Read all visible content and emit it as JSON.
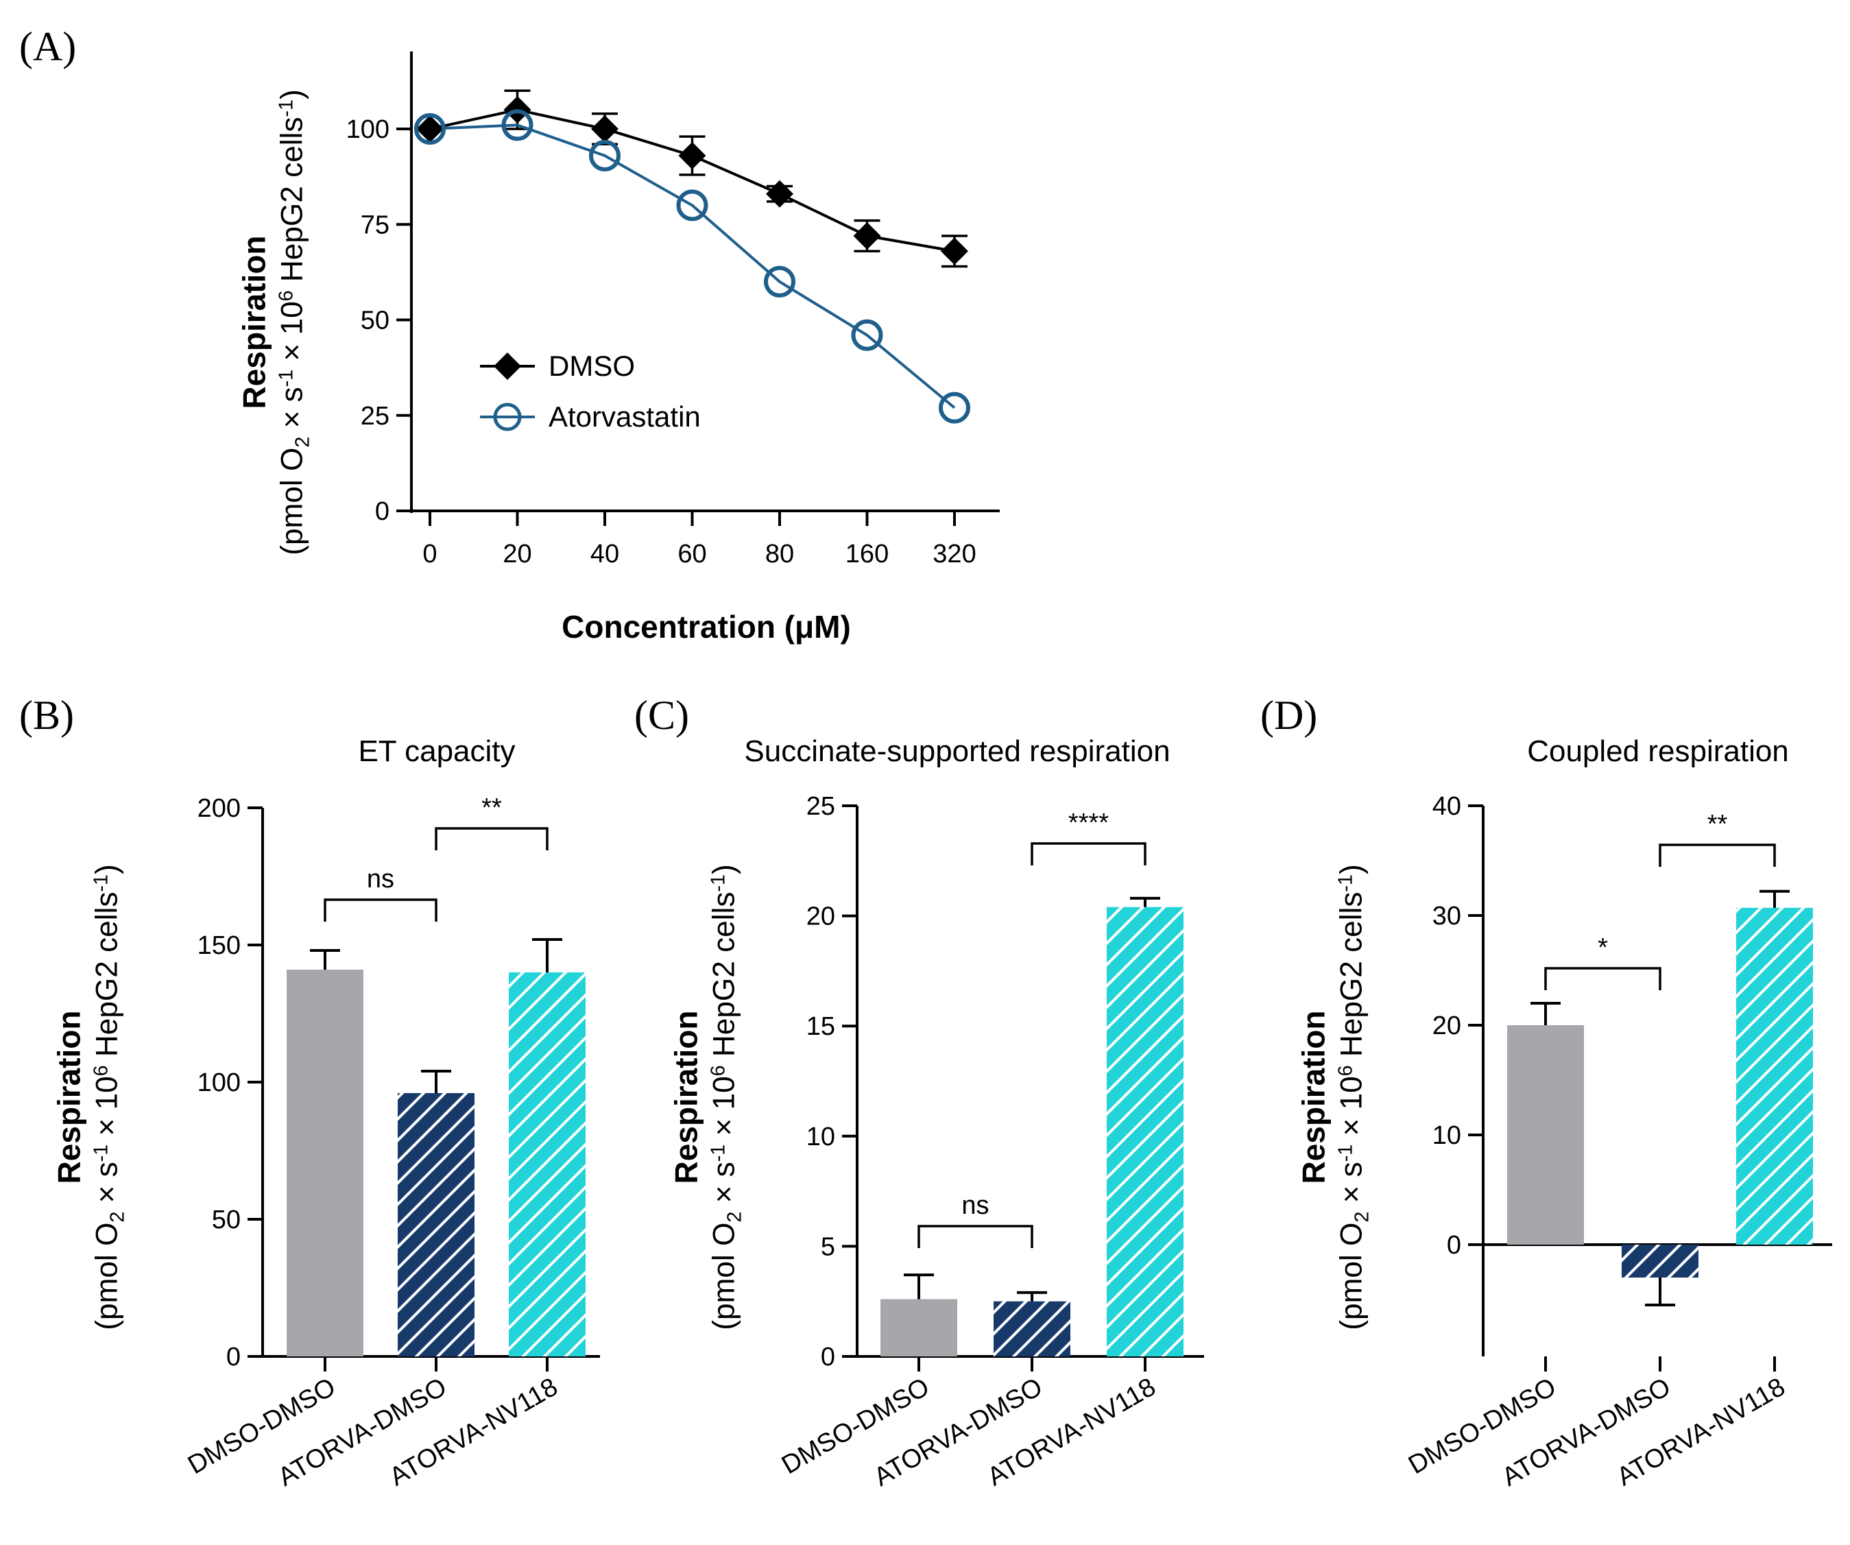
{
  "figure": {
    "panel_labels": [
      "(A)",
      "(B)",
      "(C)",
      "(D)"
    ],
    "y_label_bold": "Respiration",
    "y_label_units_prefix": "(pmol O",
    "y_label_units_sub": "2",
    "y_label_units_mid1": " × s",
    "y_label_units_sup1": "-1",
    "y_label_units_mid2": " × 10",
    "y_label_units_sup2": "6",
    "y_label_units_mid3": " HepG2 cells",
    "y_label_units_sup3": "-1",
    "y_label_units_suffix": ")"
  },
  "chart_data": [
    {
      "id": "A",
      "type": "line",
      "title": "",
      "xlabel": "Concentration (μM)",
      "ylabel": "Respiration (pmol O2 × s-1 × 10^6 HepG2 cells-1)",
      "categories": [
        "0",
        "20",
        "40",
        "60",
        "80",
        "160",
        "320"
      ],
      "ylim": [
        0,
        120
      ],
      "yticks": [
        0,
        25,
        50,
        75,
        100
      ],
      "grid": false,
      "legend_position": "lower-left",
      "series": [
        {
          "name": "DMSO",
          "marker": "diamond",
          "color": "#000000",
          "values": [
            100,
            105,
            100,
            93,
            83,
            72,
            68
          ],
          "errors": [
            0,
            5,
            4,
            5,
            2,
            4,
            4
          ]
        },
        {
          "name": "Atorvastatin",
          "marker": "circle-open",
          "color": "#1f5f8b",
          "values": [
            100,
            101,
            93,
            80,
            60,
            46,
            27
          ],
          "errors": [
            0,
            0,
            0,
            0,
            0,
            0,
            0
          ]
        }
      ]
    },
    {
      "id": "B",
      "type": "bar",
      "title": "ET capacity",
      "categories": [
        "DMSO-DMSO",
        "ATORVA-DMSO",
        "ATORVA-NV118"
      ],
      "values": [
        141,
        96,
        140
      ],
      "errors": [
        7,
        8,
        12
      ],
      "ylim": [
        0,
        200
      ],
      "yticks": [
        0,
        50,
        100,
        150,
        200
      ],
      "significance": [
        {
          "from": 0,
          "to": 1,
          "label": "ns"
        },
        {
          "from": 1,
          "to": 2,
          "label": "**"
        }
      ]
    },
    {
      "id": "C",
      "type": "bar",
      "title": "Succinate-supported respiration",
      "categories": [
        "DMSO-DMSO",
        "ATORVA-DMSO",
        "ATORVA-NV118"
      ],
      "values": [
        2.6,
        2.5,
        20.4
      ],
      "errors": [
        1.1,
        0.4,
        0.4
      ],
      "ylim": [
        0,
        25
      ],
      "yticks": [
        0,
        5,
        10,
        15,
        20,
        25
      ],
      "significance": [
        {
          "from": 0,
          "to": 1,
          "label": "ns"
        },
        {
          "from": 1,
          "to": 2,
          "label": "****"
        }
      ]
    },
    {
      "id": "D",
      "type": "bar",
      "title": "Coupled respiration",
      "categories": [
        "DMSO-DMSO",
        "ATORVA-DMSO",
        "ATORVA-NV118"
      ],
      "values": [
        20,
        -3,
        30.7
      ],
      "errors": [
        2,
        2.5,
        1.5
      ],
      "ylim": [
        -10,
        40
      ],
      "yticks": [
        0,
        10,
        20,
        30,
        40
      ],
      "significance": [
        {
          "from": 0,
          "to": 1,
          "label": "*"
        },
        {
          "from": 1,
          "to": 2,
          "label": "**"
        }
      ]
    }
  ],
  "colors": {
    "dmso_bar": "#a7a6ab",
    "atorva_bar": "#173a6b",
    "nv118_bar": "#22d4d8",
    "atorva_line": "#1f5f8b",
    "axis": "#000000"
  }
}
